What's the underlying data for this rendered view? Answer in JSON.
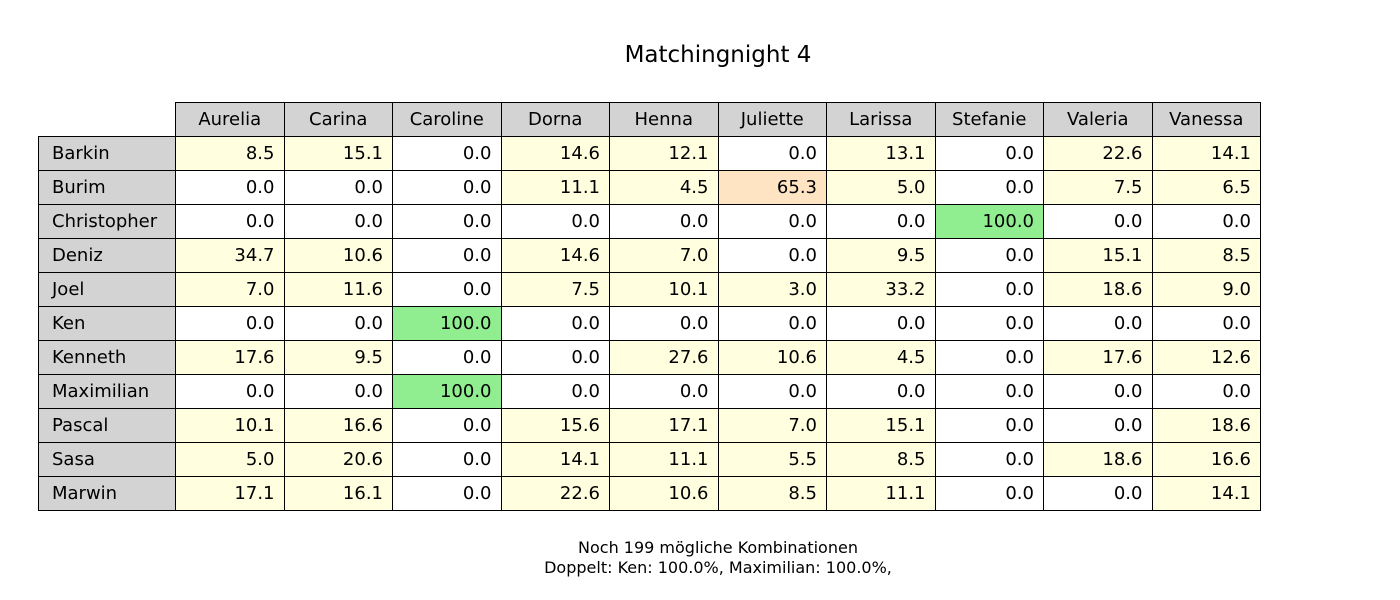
{
  "chart_data": {
    "type": "table",
    "title": "Matchingnight 4",
    "columns": [
      "Aurelia",
      "Carina",
      "Caroline",
      "Dorna",
      "Henna",
      "Juliette",
      "Larissa",
      "Stefanie",
      "Valeria",
      "Vanessa"
    ],
    "rows": [
      "Barkin",
      "Burim",
      "Christopher",
      "Deniz",
      "Joel",
      "Ken",
      "Kenneth",
      "Maximilian",
      "Pascal",
      "Sasa",
      "Marwin"
    ],
    "values": [
      [
        8.5,
        15.1,
        0.0,
        14.6,
        12.1,
        0.0,
        13.1,
        0.0,
        22.6,
        14.1
      ],
      [
        0.0,
        0.0,
        0.0,
        11.1,
        4.5,
        65.3,
        5.0,
        0.0,
        7.5,
        6.5
      ],
      [
        0.0,
        0.0,
        0.0,
        0.0,
        0.0,
        0.0,
        0.0,
        100.0,
        0.0,
        0.0
      ],
      [
        34.7,
        10.6,
        0.0,
        14.6,
        7.0,
        0.0,
        9.5,
        0.0,
        15.1,
        8.5
      ],
      [
        7.0,
        11.6,
        0.0,
        7.5,
        10.1,
        3.0,
        33.2,
        0.0,
        18.6,
        9.0
      ],
      [
        0.0,
        0.0,
        100.0,
        0.0,
        0.0,
        0.0,
        0.0,
        0.0,
        0.0,
        0.0
      ],
      [
        17.6,
        9.5,
        0.0,
        0.0,
        27.6,
        10.6,
        4.5,
        0.0,
        17.6,
        12.6
      ],
      [
        0.0,
        0.0,
        100.0,
        0.0,
        0.0,
        0.0,
        0.0,
        0.0,
        0.0,
        0.0
      ],
      [
        10.1,
        16.6,
        0.0,
        15.6,
        17.1,
        7.0,
        15.1,
        0.0,
        0.0,
        18.6
      ],
      [
        5.0,
        20.6,
        0.0,
        14.1,
        11.1,
        5.5,
        8.5,
        0.0,
        18.6,
        16.6
      ],
      [
        17.1,
        16.1,
        0.0,
        22.6,
        10.6,
        8.5,
        11.1,
        0.0,
        0.0,
        14.1
      ]
    ],
    "color_scale": {
      "zero": "#ffffff",
      "low": "#ffffe0",
      "high": "#ffe4c4",
      "certain": "#90ee90",
      "header": "#d3d3d3"
    },
    "footer_lines": [
      "Noch 199 mögliche Kombinationen",
      "Doppelt: Ken: 100.0%, Maximilian: 100.0%,"
    ]
  }
}
